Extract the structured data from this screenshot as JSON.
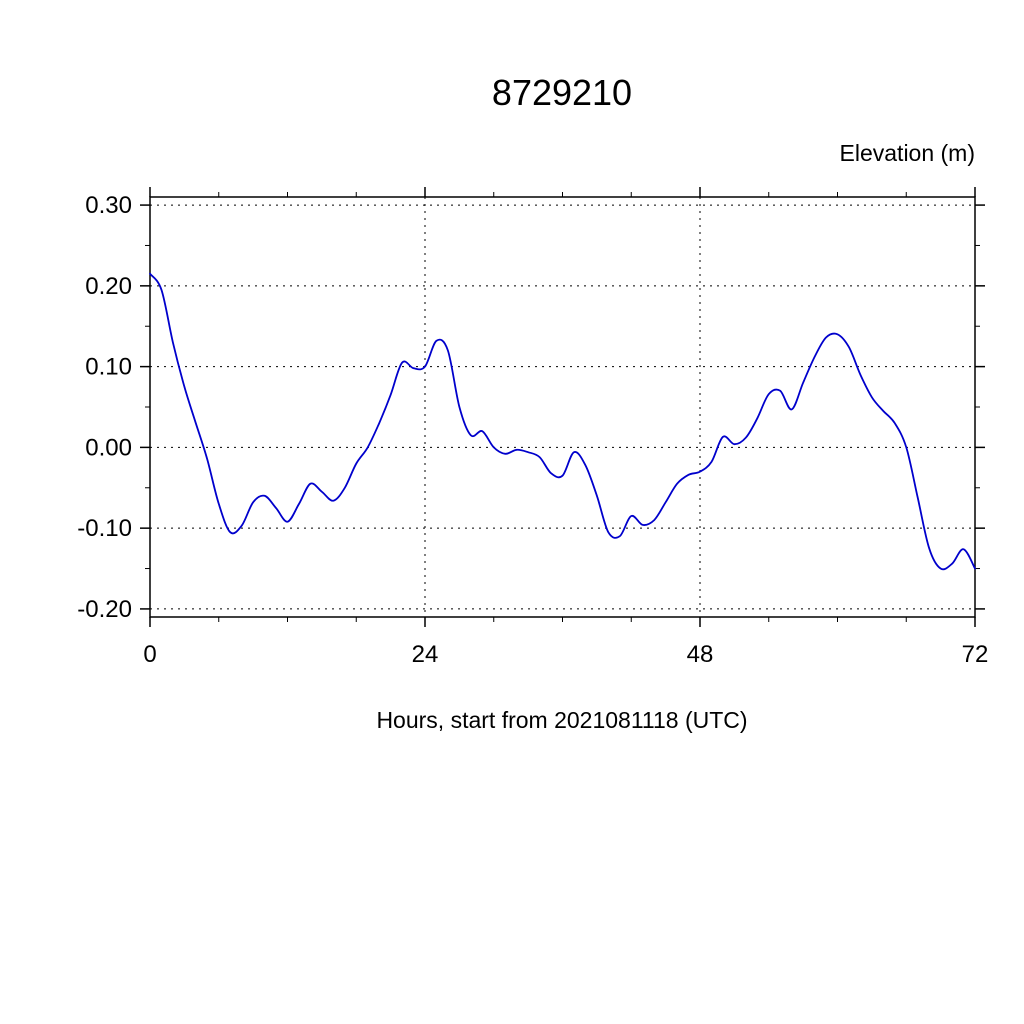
{
  "chart_data": {
    "type": "line",
    "title": "8729210",
    "ylabel": "Elevation (m)",
    "xlabel": "Hours, start from 2021081118 (UTC)",
    "line_color": "#0000cc",
    "grid": true,
    "legend": "none",
    "xlim": [
      0,
      72
    ],
    "ylim": [
      -0.21,
      0.31
    ],
    "xticks": [
      0,
      24,
      48,
      72
    ],
    "xtick_labels": [
      "0",
      "24",
      "48",
      "72"
    ],
    "yticks": [
      0.3,
      0.2,
      0.1,
      0.0,
      -0.1,
      -0.2
    ],
    "ytick_labels": [
      "0.30",
      "0.20",
      "0.10",
      "0.00",
      "-0.10",
      "-0.20"
    ],
    "x_minor_ticks": [
      6,
      12,
      18,
      30,
      36,
      42,
      54,
      60,
      66
    ],
    "y_minor_ticks": [
      0.25,
      0.15,
      0.05,
      -0.05,
      -0.15
    ],
    "x": [
      0,
      1,
      2,
      3,
      4,
      5,
      6,
      7,
      8,
      9,
      10,
      11,
      12,
      13,
      14,
      15,
      16,
      17,
      18,
      19,
      20,
      21,
      22,
      23,
      24,
      25,
      26,
      27,
      28,
      29,
      30,
      31,
      32,
      33,
      34,
      35,
      36,
      37,
      38,
      39,
      40,
      41,
      42,
      43,
      44,
      45,
      46,
      47,
      48,
      49,
      50,
      51,
      52,
      53,
      54,
      55,
      56,
      57,
      58,
      59,
      60,
      61,
      62,
      63,
      64,
      65,
      66,
      67,
      68,
      69,
      70,
      71,
      72
    ],
    "values": [
      0.215,
      0.195,
      0.13,
      0.075,
      0.03,
      -0.015,
      -0.07,
      -0.105,
      -0.097,
      -0.068,
      -0.06,
      -0.075,
      -0.092,
      -0.07,
      -0.045,
      -0.055,
      -0.066,
      -0.05,
      -0.02,
      0.0,
      0.03,
      0.065,
      0.105,
      0.098,
      0.1,
      0.132,
      0.12,
      0.05,
      0.015,
      0.02,
      0.0,
      -0.008,
      -0.003,
      -0.006,
      -0.012,
      -0.032,
      -0.035,
      -0.006,
      -0.022,
      -0.06,
      -0.105,
      -0.11,
      -0.085,
      -0.096,
      -0.09,
      -0.068,
      -0.045,
      -0.034,
      -0.03,
      -0.018,
      0.013,
      0.004,
      0.012,
      0.036,
      0.066,
      0.07,
      0.047,
      0.08,
      0.112,
      0.136,
      0.14,
      0.124,
      0.09,
      0.062,
      0.045,
      0.03,
      0.0,
      -0.062,
      -0.125,
      -0.15,
      -0.144,
      -0.126,
      -0.15
    ]
  }
}
